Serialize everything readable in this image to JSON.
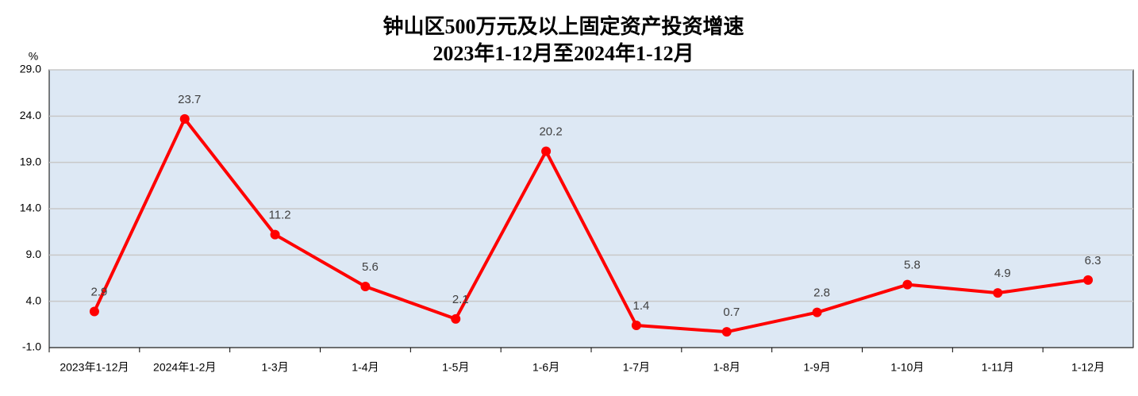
{
  "chart_data": {
    "type": "line",
    "title": "钟山区500万元及以上固定资产投资增速",
    "subtitle": "2023年1-12月至2024年1-12月",
    "y_label": "%",
    "categories": [
      "2023年1-12月",
      "2024年1-2月",
      "1-3月",
      "1-4月",
      "1-5月",
      "1-6月",
      "1-7月",
      "1-8月",
      "1-9月",
      "1-10月",
      "1-11月",
      "1-12月"
    ],
    "series": [
      {
        "name": "增速",
        "color": "#ff0000",
        "values": [
          2.9,
          23.7,
          11.2,
          5.6,
          2.1,
          20.2,
          1.4,
          0.7,
          2.8,
          5.8,
          4.9,
          6.3
        ]
      }
    ],
    "ylim": [
      -1,
      29
    ],
    "yticks": [
      {
        "value": -1,
        "label": "-1.0"
      },
      {
        "value": 4,
        "label": "4.0"
      },
      {
        "value": 9,
        "label": "9.0"
      },
      {
        "value": 14,
        "label": "14.0"
      },
      {
        "value": 19,
        "label": "19.0"
      },
      {
        "value": 24,
        "label": "24.0"
      },
      {
        "value": 29,
        "label": "29.0"
      }
    ],
    "grid": true
  }
}
